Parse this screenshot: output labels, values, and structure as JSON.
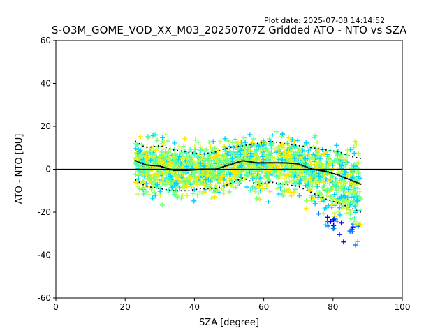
{
  "plot_date": "Plot date: 2025-07-08 14:14:52",
  "chart_data": {
    "type": "scatter",
    "title": "S-O3M_GOME_VOD_XX_M03_20250707Z Gridded ATO - NTO vs SZA",
    "xlabel": "SZA [degree]",
    "ylabel": "ATO - NTO [DU]",
    "xlim": [
      0,
      100
    ],
    "ylim": [
      -60,
      60
    ],
    "xticks": [
      0,
      20,
      40,
      60,
      80,
      100
    ],
    "yticks": [
      -60,
      -40,
      -20,
      0,
      20,
      40,
      60
    ],
    "grid": false,
    "reference_line_y": 0,
    "marker": "+",
    "colormap": [
      "#0000ff",
      "#0080ff",
      "#00d4ff",
      "#3dffb7",
      "#7dff7a",
      "#c2ff35",
      "#ffe600"
    ],
    "scatter_x_range": [
      23,
      88
    ],
    "mean_curve": {
      "x": [
        23,
        26,
        30,
        34,
        38,
        42,
        46,
        50,
        54,
        58,
        62,
        66,
        70,
        74,
        78,
        82,
        85,
        88
      ],
      "y": [
        4,
        2,
        1.5,
        -0.5,
        -0.5,
        0,
        0,
        2,
        4,
        3,
        3,
        3,
        2.5,
        0,
        -1,
        -3,
        -5,
        -7
      ]
    },
    "upper_std_curve": {
      "x": [
        23,
        26,
        30,
        34,
        38,
        42,
        46,
        50,
        54,
        58,
        62,
        66,
        70,
        74,
        78,
        82,
        85,
        88
      ],
      "y": [
        13,
        10,
        11,
        9,
        8,
        7,
        8,
        10,
        11,
        12,
        13,
        12,
        11,
        10,
        9,
        8,
        6,
        5
      ]
    },
    "lower_std_curve": {
      "x": [
        23,
        26,
        30,
        34,
        38,
        42,
        46,
        50,
        54,
        58,
        62,
        66,
        70,
        74,
        78,
        82,
        85,
        88
      ],
      "y": [
        -5,
        -8,
        -9,
        -10,
        -10,
        -9,
        -9,
        -7,
        -4,
        -7,
        -6,
        -7,
        -8,
        -11,
        -14,
        -16,
        -18,
        -20
      ]
    }
  }
}
